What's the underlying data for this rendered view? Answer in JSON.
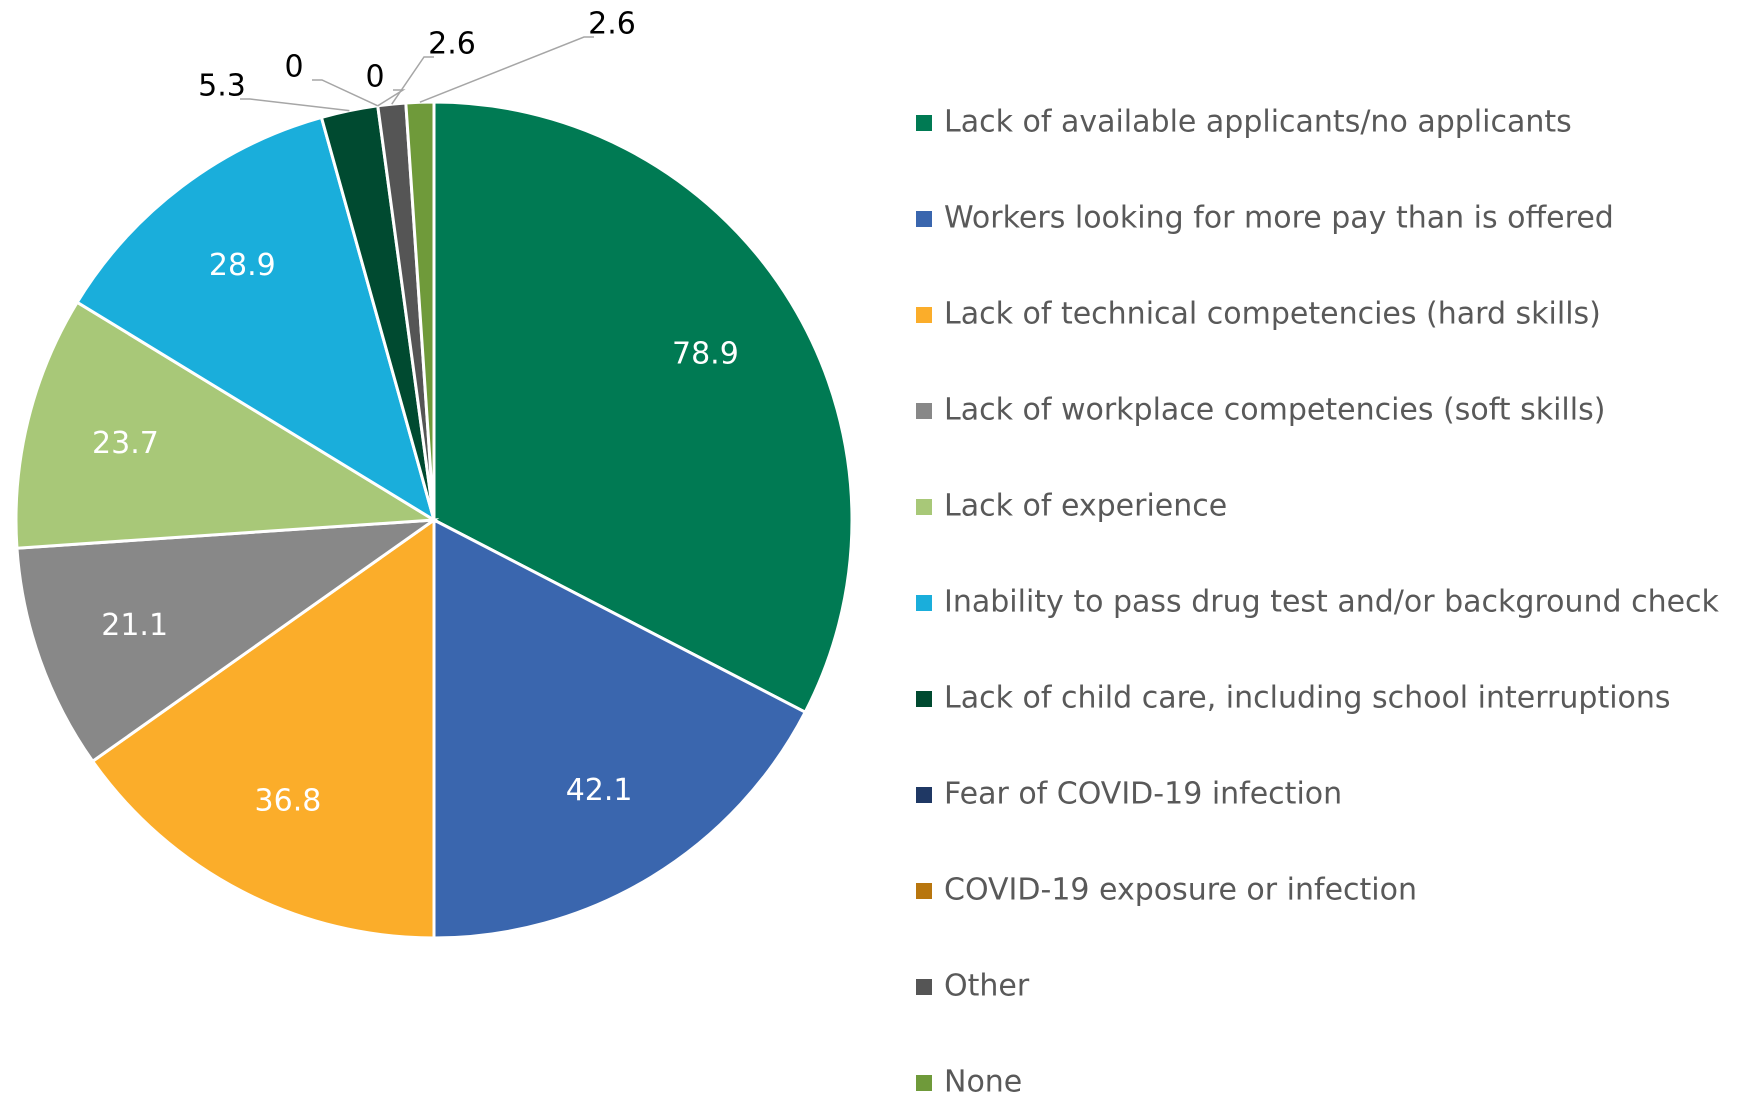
{
  "chart_data": {
    "type": "pie",
    "categories": [
      "Lack of available applicants/no applicants",
      "Workers looking for more pay than is offered",
      "Lack of technical competencies (hard skills)",
      "Lack of workplace competencies (soft skills)",
      "Lack of experience",
      "Inability to pass drug test and/or background check",
      "Lack of child care, including school interruptions",
      "Fear of COVID-19 infection",
      "COVID-19 exposure or infection",
      "Other",
      "None"
    ],
    "values": [
      78.9,
      42.1,
      36.8,
      21.1,
      23.7,
      28.9,
      5.3,
      0,
      0,
      2.6,
      2.6
    ],
    "colors": [
      "#007a53",
      "#3a66ae",
      "#fbad2a",
      "#888888",
      "#a8c878",
      "#1aaedb",
      "#004a30",
      "#1f3864",
      "#b8760e",
      "#555555",
      "#6f9a3a"
    ],
    "legend": "right"
  }
}
